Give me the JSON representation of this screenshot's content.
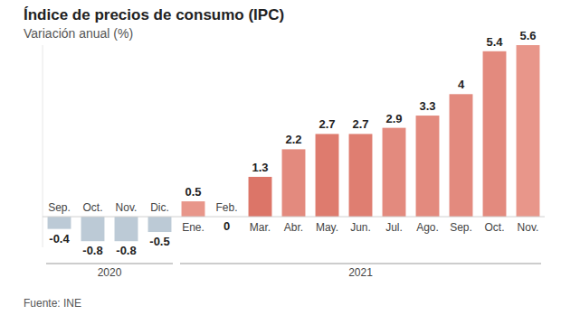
{
  "chart_data": {
    "type": "bar",
    "title": "Índice de precios de consumo (IPC)",
    "subtitle": "Variación anual (%)",
    "source": "Fuente: INE",
    "categories": [
      "Sep.",
      "Oct.",
      "Nov.",
      "Dic.",
      "Ene.",
      "Feb.",
      "Mar.",
      "Abr.",
      "May.",
      "Jun.",
      "Jul.",
      "Ago.",
      "Sep.",
      "Oct.",
      "Nov."
    ],
    "values": [
      -0.4,
      -0.8,
      -0.8,
      -0.5,
      0.5,
      0,
      1.3,
      2.2,
      2.7,
      2.7,
      2.9,
      3.3,
      4,
      5.4,
      5.6
    ],
    "colors": [
      "#bccad6",
      "#bccad6",
      "#bccad6",
      "#bccad6",
      "#e8968a",
      "#e8968a",
      "#dc7568",
      "#e38a7e",
      "#de7b6e",
      "#df7e71",
      "#e38a7e",
      "#e38a7e",
      "#e38a7e",
      "#e38a7e",
      "#e8968a"
    ],
    "annotations": [
      {
        "text": "2020",
        "from": 0,
        "to": 3
      },
      {
        "text": "2021",
        "from": 4,
        "to": 14
      }
    ],
    "ylim": [
      -1,
      5.6
    ],
    "yticks": [
      0
    ],
    "tick_labels": "x",
    "data_labels": true,
    "grid": false
  }
}
